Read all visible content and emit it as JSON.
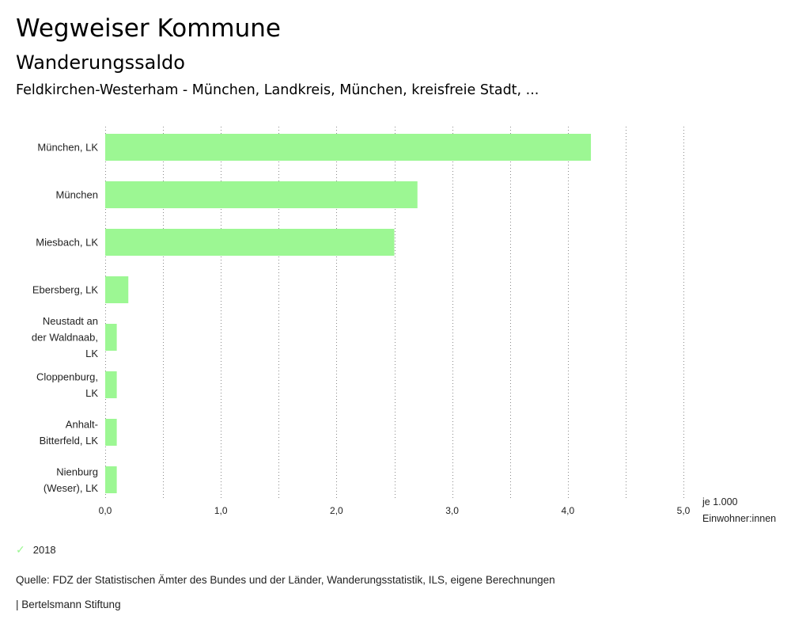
{
  "header": {
    "title": "Wegweiser Kommune",
    "subtitle": "Wanderungssaldo",
    "region": "Feldkirchen-Westerham - München, Landkreis, München, kreisfreie Stadt, ..."
  },
  "chart_data": {
    "type": "bar",
    "orientation": "horizontal",
    "categories": [
      [
        "München, LK"
      ],
      [
        "München"
      ],
      [
        "Miesbach, LK"
      ],
      [
        "Ebersberg, LK"
      ],
      [
        "Neustadt an",
        "der Waldnaab,",
        "LK"
      ],
      [
        "Cloppenburg,",
        "LK"
      ],
      [
        "Anhalt-",
        "Bitterfeld, LK"
      ],
      [
        "Nienburg",
        "(Weser), LK"
      ]
    ],
    "series": [
      {
        "name": "2018",
        "values": [
          4.2,
          2.7,
          2.5,
          0.2,
          0.1,
          0.1,
          0.1,
          0.1
        ]
      }
    ],
    "xlim": [
      0,
      5
    ],
    "ticks": [
      0,
      1,
      2,
      3,
      4,
      5
    ],
    "tick_labels": [
      "0,0",
      "1,0",
      "2,0",
      "3,0",
      "4,0",
      "5,0"
    ],
    "xlabel": [
      "je 1.000",
      "Einwohner:innen"
    ],
    "grid": "dotted-vertical",
    "color": "#9cf793"
  },
  "legend": {
    "label": "2018"
  },
  "footer": {
    "source": "Quelle: FDZ der Statistischen Ämter des Bundes und der Länder, Wanderungsstatistik, ILS, eigene Berechnungen",
    "credit": "| Bertelsmann Stiftung"
  }
}
